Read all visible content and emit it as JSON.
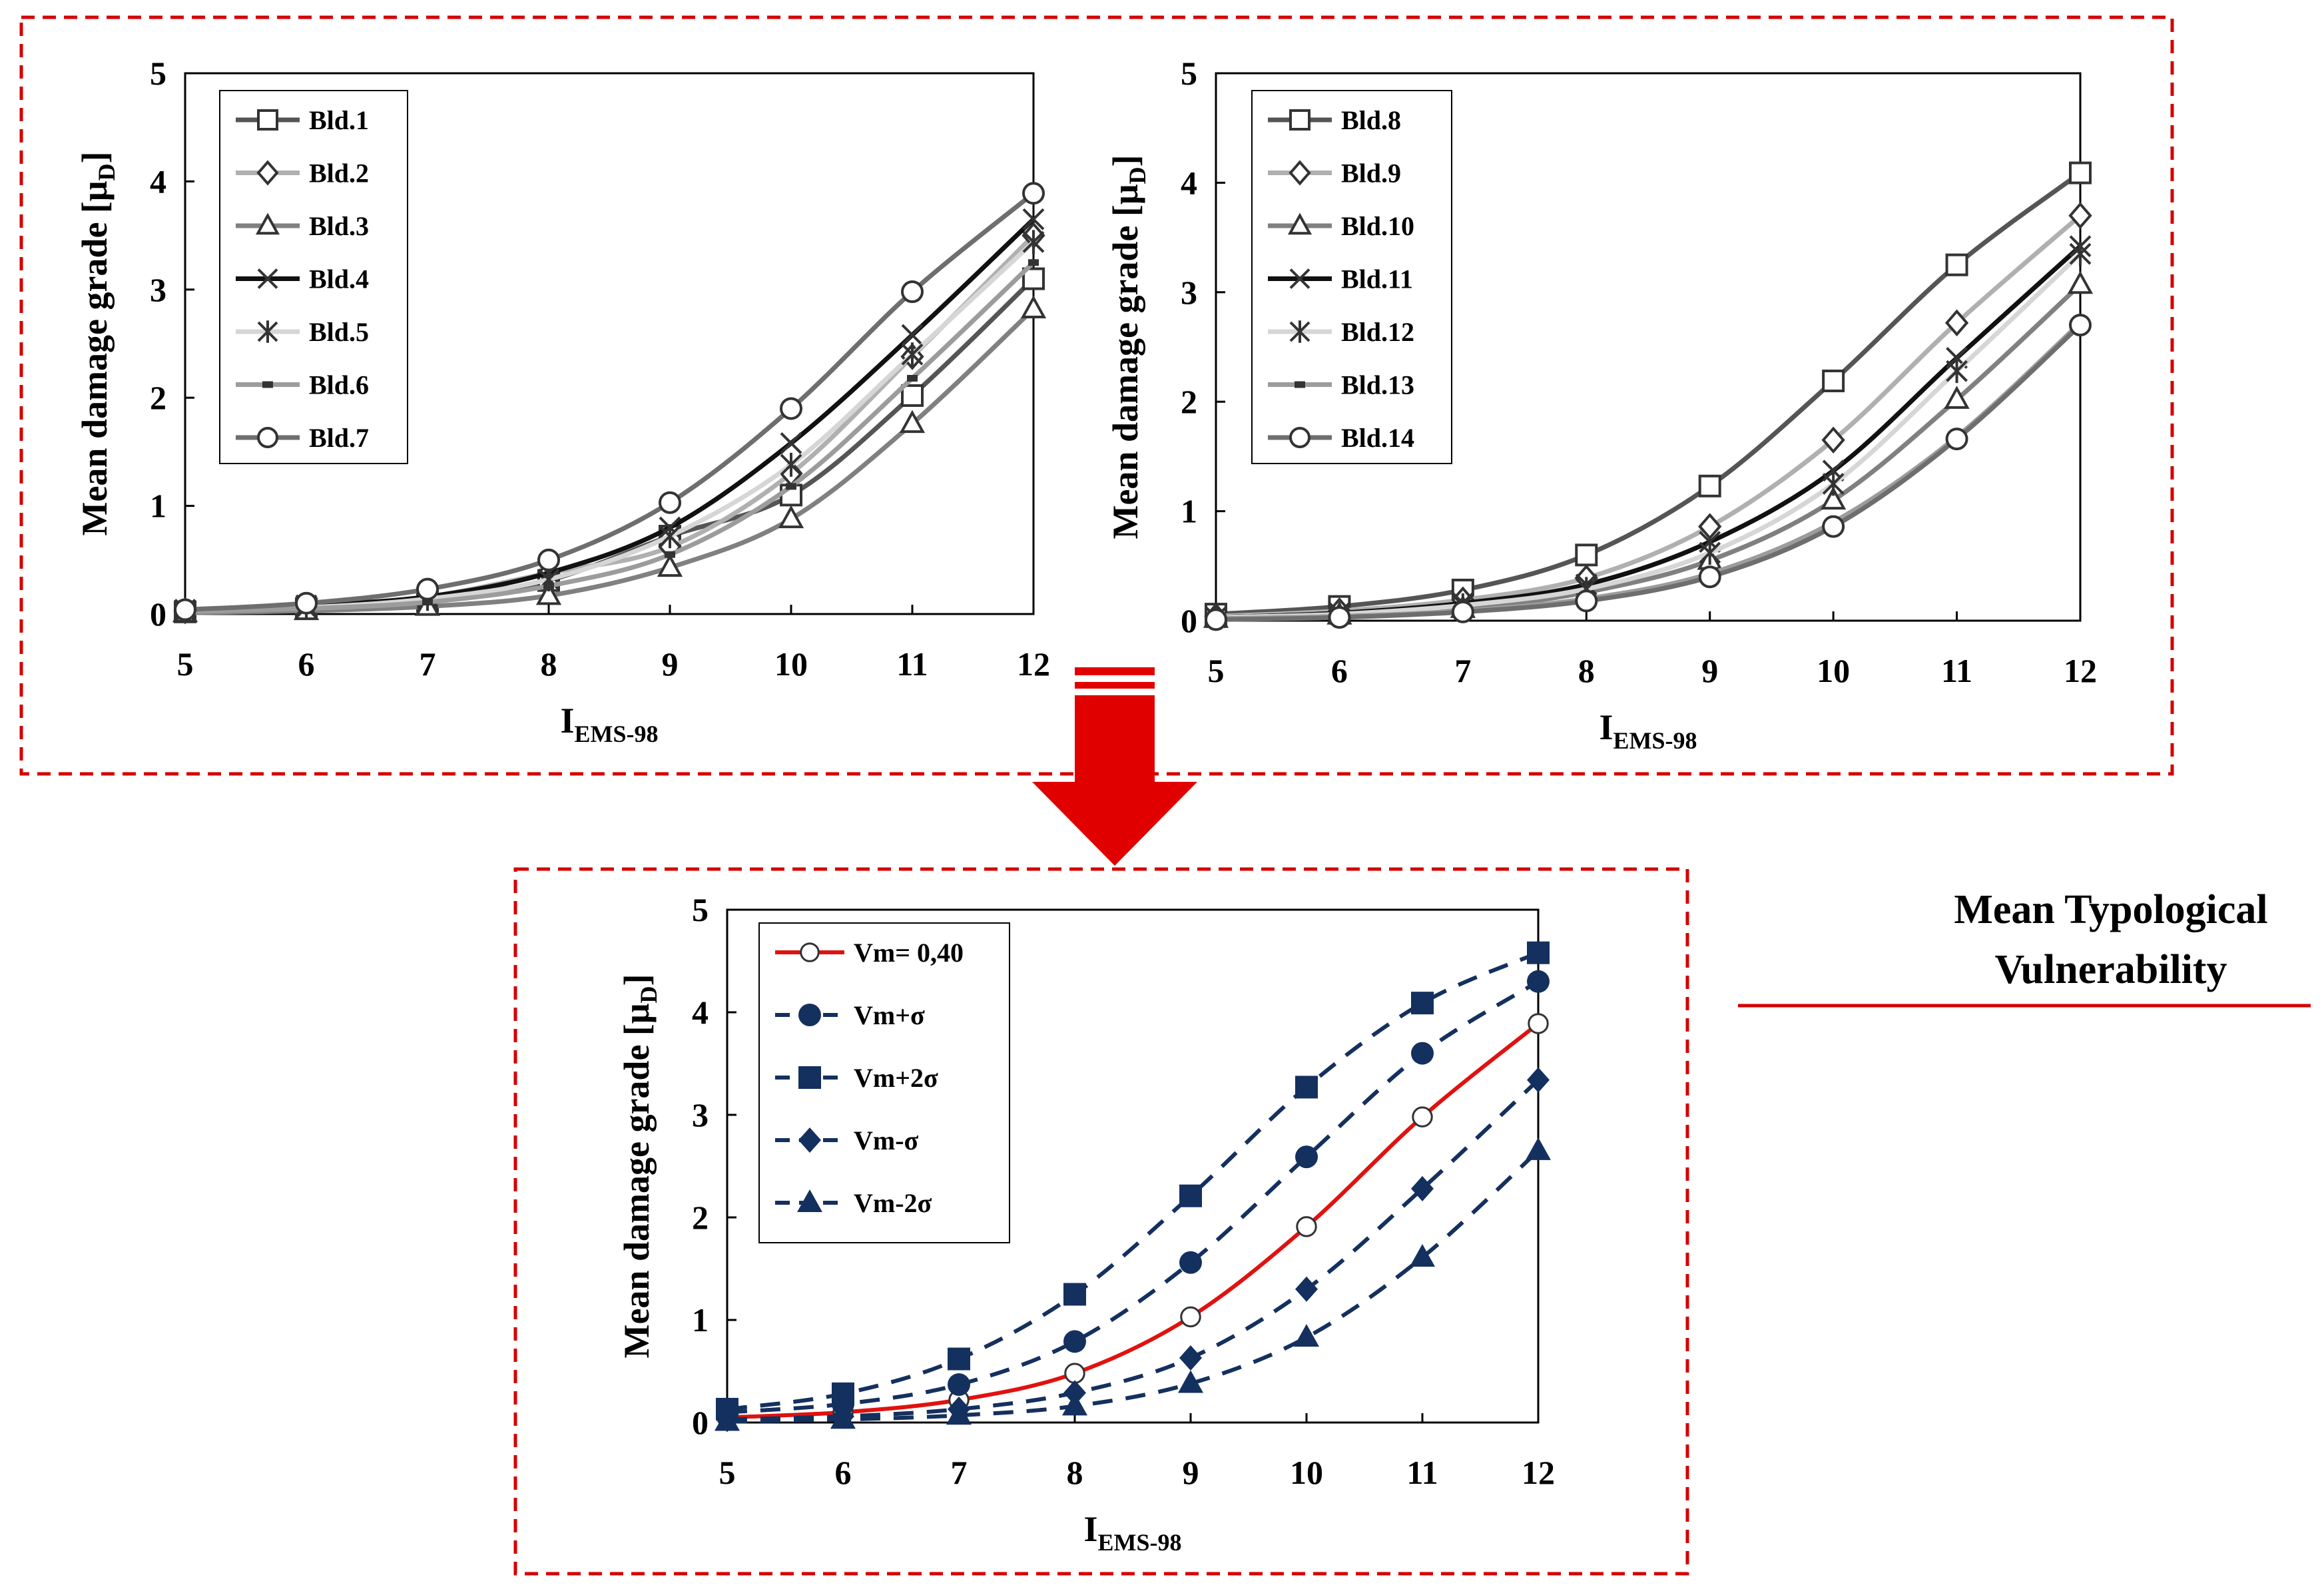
{
  "colors": {
    "frame": "#d40000",
    "arrow": "#e00000",
    "red_series": "#e0120f",
    "navy": "#14305e",
    "divider": "#d40000"
  },
  "side_label": {
    "line1": "Mean Typological",
    "line2": "Vulnerability"
  },
  "chart_data": [
    {
      "id": "top-left",
      "type": "line",
      "ylabel": "Mean damage grade [μD]",
      "ylabel_main": "Mean damage grade [μ",
      "ylabel_sub": "D",
      "ylabel_close": "]",
      "xlabel_main": "I",
      "xlabel_sub": "EMS-98",
      "xlim": [
        5,
        12
      ],
      "ylim": [
        0,
        5
      ],
      "x": [
        5,
        6,
        7,
        8,
        9,
        10,
        11,
        12
      ],
      "x_ticks": [
        "5",
        "6",
        "7",
        "8",
        "9",
        "10",
        "11",
        "12"
      ],
      "y_ticks": [
        "0",
        "1",
        "2",
        "3",
        "4",
        "5"
      ],
      "legend_position": "top-left",
      "series": [
        {
          "name": "Bld.1",
          "marker": "square",
          "color": "#555555",
          "values": [
            0.02,
            0.05,
            0.12,
            0.31,
            0.72,
            1.1,
            2.02,
            3.1
          ]
        },
        {
          "name": "Bld.2",
          "marker": "diamond",
          "color": "#b0b0b0",
          "values": [
            0.03,
            0.07,
            0.16,
            0.38,
            0.62,
            1.3,
            2.38,
            3.5
          ]
        },
        {
          "name": "Bld.3",
          "marker": "triangle",
          "color": "#808080",
          "values": [
            0.01,
            0.03,
            0.07,
            0.17,
            0.43,
            0.88,
            1.76,
            2.82
          ]
        },
        {
          "name": "Bld.4",
          "marker": "x",
          "color": "#111111",
          "values": [
            0.04,
            0.08,
            0.16,
            0.38,
            0.8,
            1.58,
            2.58,
            3.65
          ]
        },
        {
          "name": "Bld.5",
          "marker": "asterisk",
          "color": "#d6d6d6",
          "values": [
            0.03,
            0.06,
            0.14,
            0.32,
            0.72,
            1.38,
            2.4,
            3.44
          ]
        },
        {
          "name": "Bld.6",
          "marker": "dash",
          "color": "#9c9c9c",
          "values": [
            0.02,
            0.05,
            0.11,
            0.26,
            0.55,
            1.18,
            2.18,
            3.25
          ]
        },
        {
          "name": "Bld.7",
          "marker": "circle",
          "color": "#6e6e6e",
          "values": [
            0.04,
            0.1,
            0.23,
            0.5,
            1.03,
            1.9,
            2.98,
            3.89
          ]
        }
      ]
    },
    {
      "id": "top-right",
      "type": "line",
      "ylabel": "Mean damage grade [μD]",
      "ylabel_main": "Mean damage grade [μ",
      "ylabel_sub": "D",
      "ylabel_close": "]",
      "xlabel_main": "I",
      "xlabel_sub": "EMS-98",
      "xlim": [
        5,
        12
      ],
      "ylim": [
        0,
        5
      ],
      "x": [
        5,
        6,
        7,
        8,
        9,
        10,
        11,
        12
      ],
      "x_ticks": [
        "5",
        "6",
        "7",
        "8",
        "9",
        "10",
        "11",
        "12"
      ],
      "y_ticks": [
        "0",
        "1",
        "2",
        "3",
        "4",
        "5"
      ],
      "legend_position": "top-left",
      "series": [
        {
          "name": "Bld.8",
          "marker": "square",
          "color": "#555555",
          "values": [
            0.06,
            0.13,
            0.28,
            0.6,
            1.23,
            2.19,
            3.25,
            4.09
          ]
        },
        {
          "name": "Bld.9",
          "marker": "diamond",
          "color": "#b0b0b0",
          "values": [
            0.04,
            0.09,
            0.19,
            0.39,
            0.86,
            1.65,
            2.72,
            3.7
          ]
        },
        {
          "name": "Bld.10",
          "marker": "triangle",
          "color": "#808080",
          "values": [
            0.02,
            0.05,
            0.11,
            0.26,
            0.55,
            1.1,
            2.02,
            3.07
          ]
        },
        {
          "name": "Bld.11",
          "marker": "x",
          "color": "#111111",
          "values": [
            0.03,
            0.07,
            0.16,
            0.33,
            0.72,
            1.37,
            2.4,
            3.42
          ]
        },
        {
          "name": "Bld.12",
          "marker": "asterisk",
          "color": "#d6d6d6",
          "values": [
            0.03,
            0.06,
            0.14,
            0.29,
            0.62,
            1.25,
            2.28,
            3.35
          ]
        },
        {
          "name": "Bld.13",
          "marker": "dash",
          "color": "#9c9c9c",
          "values": [
            0.02,
            0.04,
            0.09,
            0.2,
            0.43,
            0.9,
            1.68,
            2.72
          ]
        },
        {
          "name": "Bld.14",
          "marker": "circle",
          "color": "#6e6e6e",
          "values": [
            0.01,
            0.03,
            0.08,
            0.18,
            0.4,
            0.86,
            1.66,
            2.7
          ]
        }
      ]
    },
    {
      "id": "bottom",
      "type": "line",
      "ylabel": "Mean damage grade [μD]",
      "ylabel_main": "Mean damage grade [μ",
      "ylabel_sub": "D",
      "ylabel_close": "]",
      "xlabel_main": "I",
      "xlabel_sub": "EMS-98",
      "xlim": [
        5,
        12
      ],
      "ylim": [
        0,
        5
      ],
      "x": [
        5,
        6,
        7,
        8,
        9,
        10,
        11,
        12
      ],
      "x_ticks": [
        "5",
        "6",
        "7",
        "8",
        "9",
        "10",
        "11",
        "12"
      ],
      "y_ticks": [
        "0",
        "1",
        "2",
        "3",
        "4",
        "5"
      ],
      "legend_position": "top-left",
      "series": [
        {
          "name": "Vm= 0,40",
          "marker": "circle-open",
          "color": "#e0120f",
          "dashed": false,
          "values": [
            0.05,
            0.1,
            0.22,
            0.48,
            1.03,
            1.91,
            2.98,
            3.89
          ]
        },
        {
          "name": "Vm+σ",
          "marker": "circle",
          "color": "#14305e",
          "dashed": true,
          "values": [
            0.1,
            0.18,
            0.37,
            0.79,
            1.56,
            2.59,
            3.6,
            4.3
          ]
        },
        {
          "name": "Vm+2σ",
          "marker": "square",
          "color": "#14305e",
          "dashed": true,
          "values": [
            0.13,
            0.28,
            0.62,
            1.25,
            2.21,
            3.27,
            4.09,
            4.58
          ]
        },
        {
          "name": "Vm-σ",
          "marker": "diamond",
          "color": "#14305e",
          "dashed": true,
          "values": [
            0.03,
            0.06,
            0.13,
            0.29,
            0.63,
            1.3,
            2.28,
            3.34
          ]
        },
        {
          "name": "Vm-2σ",
          "marker": "triangle",
          "color": "#14305e",
          "dashed": true,
          "values": [
            0.01,
            0.03,
            0.07,
            0.16,
            0.38,
            0.83,
            1.61,
            2.65
          ]
        }
      ]
    }
  ]
}
